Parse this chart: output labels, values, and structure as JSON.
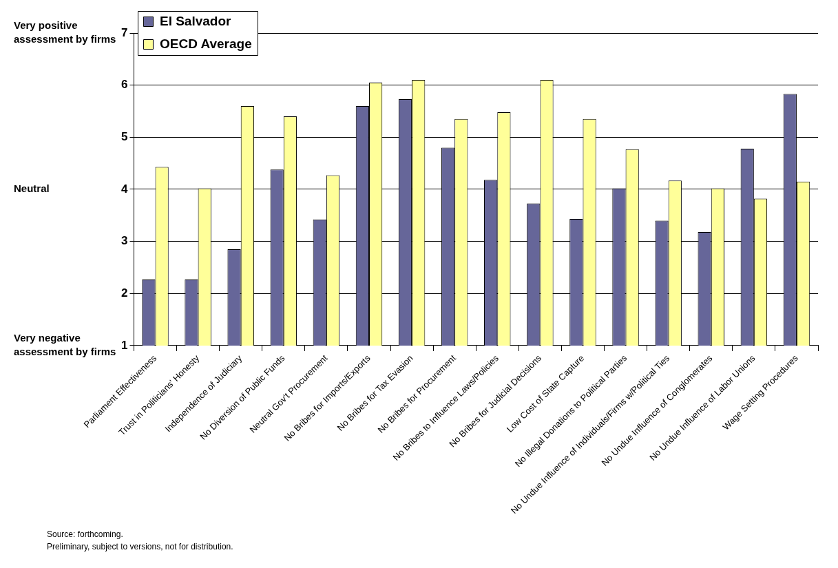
{
  "chart_data": {
    "type": "bar",
    "categories": [
      "Parliament Effectiveness",
      "Trust in Politicians' Honesty",
      "Independence of Judiciary",
      "No Diversion of Public Funds",
      "Neutral Gov't Procurement",
      "No Bribes for Imports/Exports",
      "No Bribes for Tax Evasion",
      "No Bribes for Procurement",
      "No Bribes to Influence Laws/Policies",
      "No Bribes for Judicial Decisions",
      "Low Cost of State Capture",
      "No Illegal Donations to Political Parties",
      "No Undue Influence of Individuals/Firms w/Political Ties",
      "No Undue Influence of Conglomerates",
      "No Undue Influence of Labor Unions",
      "Wage Setting Procedures"
    ],
    "series": [
      {
        "name": "El Salvador",
        "color": "#666699",
        "values": [
          2.27,
          2.27,
          2.85,
          4.38,
          3.42,
          5.6,
          5.73,
          4.8,
          4.18,
          3.73,
          3.43,
          4.02,
          3.4,
          3.18,
          4.78,
          5.83
        ]
      },
      {
        "name": "OECD Average",
        "color": "#ffff99",
        "values": [
          4.43,
          4.02,
          5.6,
          5.4,
          4.27,
          6.05,
          6.1,
          5.35,
          5.48,
          6.1,
          5.35,
          4.77,
          4.17,
          4.02,
          3.82,
          4.15
        ]
      }
    ],
    "ylim": [
      1,
      7
    ],
    "yticks": [
      1,
      2,
      3,
      4,
      5,
      6,
      7
    ],
    "grid": "y",
    "legend": "top left",
    "annotations": [
      "Very positive assessment by firms",
      "Neutral",
      "Very negative assessment by firms",
      "Source: forthcoming.",
      "Preliminary, subject to versions, not for distribution."
    ]
  }
}
